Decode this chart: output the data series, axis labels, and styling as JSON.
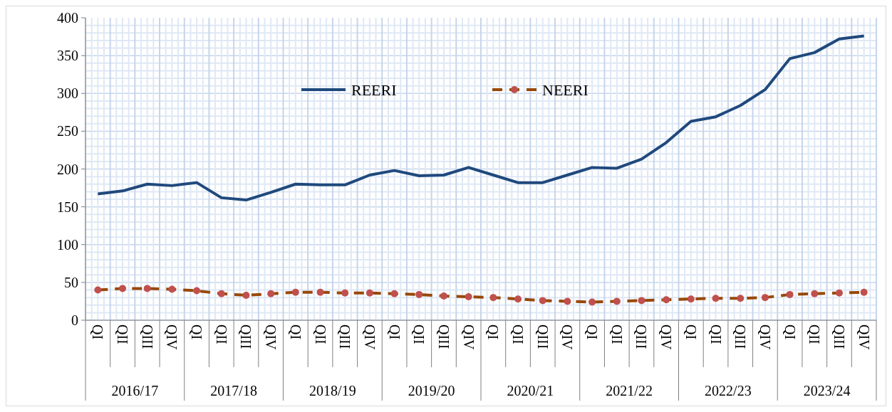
{
  "chart_data": {
    "type": "line",
    "categories": [
      "QI",
      "QII",
      "QIII",
      "QIV",
      "QI",
      "QII",
      "QIII",
      "QIV",
      "QI",
      "QII",
      "QIII",
      "QIV",
      "QI",
      "QII",
      "QIII",
      "QIV",
      "QI",
      "QII",
      "QIII",
      "QIV",
      "QI",
      "QII",
      "QIII",
      "QIV",
      "QI",
      "QII",
      "QIII",
      "QIV",
      "QI",
      "QII",
      "QIII",
      "QIV"
    ],
    "annotations": [
      "2016/17",
      "2017/18",
      "2018/19",
      "2019/20",
      "2020/21",
      "2021/22",
      "2022/23",
      "2023/24"
    ],
    "series": [
      {
        "name": "REERI",
        "color": "#1f497d",
        "marker": "none",
        "line_style": "solid",
        "values": [
          167,
          171,
          180,
          178,
          182,
          162,
          159,
          169,
          180,
          179,
          179,
          192,
          198,
          191,
          192,
          202,
          192,
          182,
          182,
          192,
          202,
          201,
          213,
          235,
          263,
          269,
          284,
          305,
          346,
          354,
          372,
          376
        ]
      },
      {
        "name": "NEERI",
        "color": "#984807",
        "marker": "circle",
        "line_style": "dashed",
        "values": [
          40,
          42,
          42,
          41,
          39,
          35,
          33,
          35,
          37,
          37,
          36,
          36,
          35,
          34,
          32,
          31,
          30,
          28,
          26,
          25,
          24,
          25,
          26,
          27,
          28,
          29,
          29,
          30,
          34,
          35,
          36,
          37
        ]
      }
    ],
    "ylim": [
      0,
      400
    ],
    "yticks": [
      0,
      50,
      100,
      150,
      200,
      250,
      300,
      350,
      400
    ],
    "grid": true,
    "legend": "top"
  }
}
